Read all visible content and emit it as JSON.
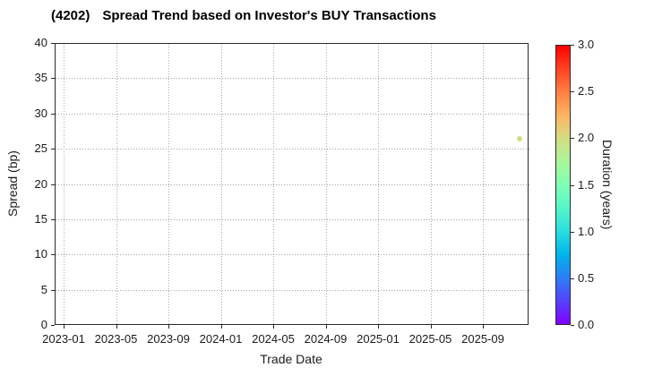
{
  "header": {
    "ticker": "(4202)",
    "title": "Spread Trend based on Investor's BUY Transactions"
  },
  "chart_data": {
    "type": "scatter",
    "title": "(4202)  Spread Trend based on Investor's BUY Transactions",
    "xlabel": "Trade Date",
    "ylabel": "Spread (bp)",
    "x_tick_labels": [
      "2023-01",
      "2023-05",
      "2023-09",
      "2024-01",
      "2024-05",
      "2024-09",
      "2025-01",
      "2025-05",
      "2025-09"
    ],
    "x_axis_start": "2023-01",
    "y_ticks": [
      0,
      5,
      10,
      15,
      20,
      25,
      30,
      35,
      40
    ],
    "ylim": [
      0,
      40
    ],
    "grid": true,
    "legend": "none",
    "points": [
      {
        "trade_date": "2025-11-24",
        "spread_bp": 26.5,
        "duration_years": 2.0
      }
    ],
    "colorbar": {
      "label": "Duration (years)",
      "min": 0.0,
      "max": 3.0,
      "tick_labels": [
        "0.0",
        "0.5",
        "1.0",
        "1.5",
        "2.0",
        "2.5",
        "3.0"
      ],
      "colormap": "rainbow"
    }
  }
}
